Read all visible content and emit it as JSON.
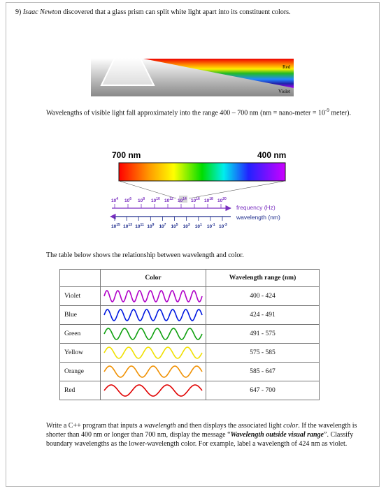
{
  "question": {
    "number": "9)",
    "name": "Isaac Newton",
    "text": "discovered that a glass prism can split white light apart into its constituent colors."
  },
  "prism": {
    "red_label": "Red",
    "violet_label": "Violet"
  },
  "range_note": {
    "text_before": "Wavelengths of visible light fall approximately into the range 400 – 700 nm (nm = nano-meter = 10",
    "exponent": "-9",
    "text_after": " meter)."
  },
  "spectrum": {
    "left_label": "700 nm",
    "right_label": "400 nm",
    "tick_base": "10",
    "frequency_exponents": [
      "4",
      "6",
      "8",
      "10",
      "12",
      "14",
      "16",
      "18",
      "20"
    ],
    "wavelength_exponents": [
      "15",
      "13",
      "11",
      "9",
      "7",
      "5",
      "3",
      "1",
      "-1",
      "-3"
    ],
    "frequency_label": "frequency (Hz)",
    "wavelength_label": "wavelength (nm)"
  },
  "table_intro": "The table below shows the relationship between wavelength and color.",
  "table": {
    "headers": [
      "Color",
      "Wavelength range (nm)"
    ],
    "rows": [
      [
        "Violet",
        "400 - 424"
      ],
      [
        "Blue",
        "424 - 491"
      ],
      [
        "Green",
        "491 - 575"
      ],
      [
        "Yellow",
        "575 - 585"
      ],
      [
        "Orange",
        "585 - 647"
      ],
      [
        "Red",
        "647 - 700"
      ]
    ]
  },
  "task": {
    "part1": "Write a C++ program that inputs a ",
    "wavelength": "wavelength",
    "part2": " and then displays the associated light ",
    "color": "color",
    "part3": ". If the wavelength is shorter than 400 nm or longer than 700 nm, display the message “",
    "message": "Wavelength outside visual range",
    "part4": "”. Classify boundary wavelengths as the lower-wavelength color. For example, label a wavelength of 424 nm as violet."
  }
}
